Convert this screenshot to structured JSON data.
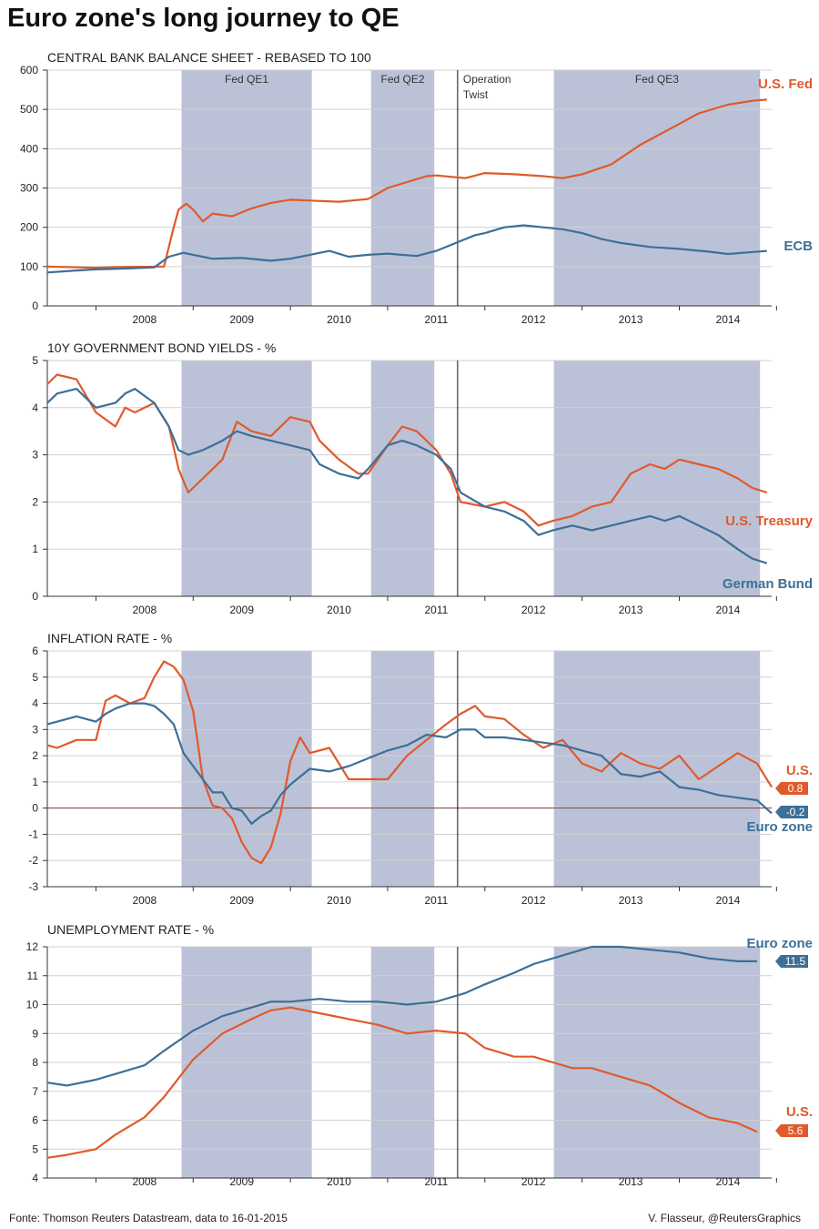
{
  "title": "Euro zone's long journey to QE",
  "footer": {
    "source": "Fonte: Thomson Reuters Datastream, data to 16-01-2015",
    "credit": "V. Flasseur, @ReutersGraphics"
  },
  "colors": {
    "us": "#e05a2b",
    "eu": "#3d6f97",
    "shade": "#b7bfd6",
    "grid": "#d0d0d0",
    "axis": "#333333"
  },
  "year_labels": [
    "2008",
    "2009",
    "2010",
    "2011",
    "2012",
    "2013",
    "2014"
  ],
  "qe_periods": [
    {
      "label": "Fed QE1",
      "start": 2008.88,
      "end": 2010.22
    },
    {
      "label": "Fed QE2",
      "start": 2010.83,
      "end": 2011.48
    },
    {
      "label": "Fed QE3",
      "start": 2012.71,
      "end": 2014.83
    }
  ],
  "operation_twist": {
    "x": 2011.72,
    "label_lines": [
      "Operation",
      "Twist"
    ]
  },
  "chart_data": [
    {
      "type": "line",
      "title": "CENTRAL BANK BALANCE SHEET - REBASED TO 100",
      "xlim": [
        2007.5,
        2014.95
      ],
      "ylim": [
        0,
        600
      ],
      "yticks": [
        "0",
        "100",
        "200",
        "300",
        "400",
        "500",
        "600"
      ],
      "grid": true,
      "show_period_labels": true,
      "series": [
        {
          "name": "U.S. Fed",
          "color": "#e05a2b",
          "x": [
            2007.5,
            2008.0,
            2008.2,
            2008.7,
            2008.8,
            2008.85,
            2008.93,
            2009.0,
            2009.1,
            2009.2,
            2009.4,
            2009.6,
            2009.8,
            2010.0,
            2010.2,
            2010.5,
            2010.8,
            2011.0,
            2011.2,
            2011.4,
            2011.5,
            2011.8,
            2012.0,
            2012.3,
            2012.6,
            2012.8,
            2013.0,
            2013.3,
            2013.6,
            2013.9,
            2014.2,
            2014.5,
            2014.75,
            2014.9
          ],
          "y": [
            100,
            97,
            99,
            100,
            200,
            245,
            260,
            245,
            215,
            235,
            228,
            248,
            262,
            270,
            268,
            265,
            272,
            300,
            315,
            330,
            332,
            325,
            338,
            335,
            330,
            325,
            335,
            360,
            410,
            450,
            490,
            512,
            522,
            525
          ]
        },
        {
          "name": "ECB",
          "color": "#3d6f97",
          "x": [
            2007.5,
            2007.8,
            2008.0,
            2008.3,
            2008.6,
            2008.75,
            2008.9,
            2009.0,
            2009.2,
            2009.5,
            2009.8,
            2010.0,
            2010.2,
            2010.4,
            2010.6,
            2010.8,
            2011.0,
            2011.3,
            2011.5,
            2011.8,
            2011.9,
            2012.0,
            2012.2,
            2012.4,
            2012.6,
            2012.8,
            2013.0,
            2013.2,
            2013.4,
            2013.7,
            2014.0,
            2014.3,
            2014.5,
            2014.7,
            2014.9
          ],
          "y": [
            85,
            90,
            93,
            95,
            98,
            125,
            135,
            130,
            120,
            122,
            115,
            120,
            130,
            140,
            125,
            130,
            133,
            127,
            140,
            170,
            180,
            185,
            200,
            205,
            200,
            195,
            185,
            170,
            160,
            150,
            145,
            138,
            132,
            136,
            140
          ]
        }
      ],
      "end_labels": [
        {
          "text": "U.S. Fed",
          "color": "#e05a2b"
        },
        {
          "text": "ECB",
          "color": "#3d6f97"
        }
      ],
      "badges": []
    },
    {
      "type": "line",
      "title": "10Y GOVERNMENT BOND YIELDS - %",
      "xlim": [
        2007.5,
        2014.95
      ],
      "ylim": [
        0,
        5
      ],
      "yticks": [
        "0",
        "1",
        "2",
        "3",
        "4",
        "5"
      ],
      "grid": true,
      "show_period_labels": false,
      "series": [
        {
          "name": "U.S. Treasury",
          "color": "#e05a2b",
          "x": [
            2007.5,
            2007.6,
            2007.8,
            2008.0,
            2008.2,
            2008.3,
            2008.4,
            2008.6,
            2008.75,
            2008.85,
            2008.95,
            2009.1,
            2009.3,
            2009.45,
            2009.6,
            2009.8,
            2010.0,
            2010.2,
            2010.3,
            2010.5,
            2010.7,
            2010.8,
            2011.0,
            2011.15,
            2011.3,
            2011.5,
            2011.65,
            2011.75,
            2012.0,
            2012.2,
            2012.4,
            2012.55,
            2012.7,
            2012.9,
            2013.1,
            2013.3,
            2013.5,
            2013.7,
            2013.85,
            2014.0,
            2014.2,
            2014.4,
            2014.6,
            2014.75,
            2014.9
          ],
          "y": [
            4.5,
            4.7,
            4.6,
            3.9,
            3.6,
            4.0,
            3.9,
            4.1,
            3.6,
            2.7,
            2.2,
            2.5,
            2.9,
            3.7,
            3.5,
            3.4,
            3.8,
            3.7,
            3.3,
            2.9,
            2.6,
            2.6,
            3.2,
            3.6,
            3.5,
            3.1,
            2.6,
            2.0,
            1.9,
            2.0,
            1.8,
            1.5,
            1.6,
            1.7,
            1.9,
            2.0,
            2.6,
            2.8,
            2.7,
            2.9,
            2.8,
            2.7,
            2.5,
            2.3,
            2.2
          ]
        },
        {
          "name": "German Bund",
          "color": "#3d6f97",
          "x": [
            2007.5,
            2007.6,
            2007.8,
            2008.0,
            2008.2,
            2008.3,
            2008.4,
            2008.6,
            2008.75,
            2008.85,
            2008.95,
            2009.1,
            2009.3,
            2009.45,
            2009.6,
            2009.8,
            2010.0,
            2010.2,
            2010.3,
            2010.5,
            2010.7,
            2010.8,
            2011.0,
            2011.15,
            2011.3,
            2011.5,
            2011.65,
            2011.75,
            2012.0,
            2012.2,
            2012.4,
            2012.55,
            2012.7,
            2012.9,
            2013.1,
            2013.3,
            2013.5,
            2013.7,
            2013.85,
            2014.0,
            2014.2,
            2014.4,
            2014.6,
            2014.75,
            2014.9
          ],
          "y": [
            4.1,
            4.3,
            4.4,
            4.0,
            4.1,
            4.3,
            4.4,
            4.1,
            3.6,
            3.1,
            3.0,
            3.1,
            3.3,
            3.5,
            3.4,
            3.3,
            3.2,
            3.1,
            2.8,
            2.6,
            2.5,
            2.7,
            3.2,
            3.3,
            3.2,
            3.0,
            2.7,
            2.2,
            1.9,
            1.8,
            1.6,
            1.3,
            1.4,
            1.5,
            1.4,
            1.5,
            1.6,
            1.7,
            1.6,
            1.7,
            1.5,
            1.3,
            1.0,
            0.8,
            0.7
          ]
        }
      ],
      "end_labels": [
        {
          "text": "U.S. Treasury",
          "color": "#e05a2b"
        },
        {
          "text": "German Bund",
          "color": "#3d6f97"
        }
      ],
      "badges": []
    },
    {
      "type": "line",
      "title": "INFLATION RATE - %",
      "xlim": [
        2007.5,
        2014.95
      ],
      "ylim": [
        -3,
        6
      ],
      "yticks": [
        "-3",
        "-2",
        "-1",
        "0",
        "1",
        "2",
        "3",
        "4",
        "5",
        "6"
      ],
      "grid": true,
      "show_period_labels": false,
      "zero_line": true,
      "series": [
        {
          "name": "U.S.",
          "color": "#e05a2b",
          "x": [
            2007.5,
            2007.6,
            2007.8,
            2008.0,
            2008.1,
            2008.2,
            2008.35,
            2008.5,
            2008.6,
            2008.7,
            2008.8,
            2008.9,
            2009.0,
            2009.1,
            2009.2,
            2009.3,
            2009.4,
            2009.5,
            2009.6,
            2009.7,
            2009.8,
            2009.9,
            2010.0,
            2010.1,
            2010.2,
            2010.4,
            2010.6,
            2010.8,
            2011.0,
            2011.2,
            2011.4,
            2011.6,
            2011.75,
            2011.9,
            2012.0,
            2012.2,
            2012.4,
            2012.6,
            2012.8,
            2013.0,
            2013.2,
            2013.4,
            2013.6,
            2013.8,
            2014.0,
            2014.2,
            2014.4,
            2014.6,
            2014.8,
            2014.95
          ],
          "y": [
            2.4,
            2.3,
            2.6,
            2.6,
            4.1,
            4.3,
            4.0,
            4.2,
            5.0,
            5.6,
            5.4,
            4.9,
            3.7,
            1.1,
            0.1,
            0.0,
            -0.4,
            -1.3,
            -1.9,
            -2.1,
            -1.5,
            -0.2,
            1.8,
            2.7,
            2.1,
            2.3,
            1.1,
            1.1,
            1.1,
            2.0,
            2.6,
            3.2,
            3.6,
            3.9,
            3.5,
            3.4,
            2.8,
            2.3,
            2.6,
            1.7,
            1.4,
            2.1,
            1.7,
            1.5,
            2.0,
            1.1,
            1.6,
            2.1,
            1.7,
            0.8
          ]
        },
        {
          "name": "Euro zone",
          "color": "#3d6f97",
          "x": [
            2007.5,
            2007.6,
            2007.8,
            2008.0,
            2008.1,
            2008.2,
            2008.35,
            2008.5,
            2008.6,
            2008.7,
            2008.8,
            2008.9,
            2009.0,
            2009.1,
            2009.2,
            2009.3,
            2009.4,
            2009.5,
            2009.6,
            2009.7,
            2009.8,
            2009.9,
            2010.0,
            2010.1,
            2010.2,
            2010.4,
            2010.6,
            2010.8,
            2011.0,
            2011.2,
            2011.4,
            2011.6,
            2011.75,
            2011.9,
            2012.0,
            2012.2,
            2012.4,
            2012.6,
            2012.8,
            2013.0,
            2013.2,
            2013.4,
            2013.6,
            2013.8,
            2014.0,
            2014.2,
            2014.4,
            2014.6,
            2014.8,
            2014.95
          ],
          "y": [
            3.2,
            3.3,
            3.5,
            3.3,
            3.6,
            3.8,
            4.0,
            4.0,
            3.9,
            3.6,
            3.2,
            2.1,
            1.6,
            1.1,
            0.6,
            0.6,
            0.0,
            -0.1,
            -0.6,
            -0.3,
            -0.1,
            0.5,
            0.9,
            1.2,
            1.5,
            1.4,
            1.6,
            1.9,
            2.2,
            2.4,
            2.8,
            2.7,
            3.0,
            3.0,
            2.7,
            2.7,
            2.6,
            2.5,
            2.4,
            2.2,
            2.0,
            1.3,
            1.2,
            1.4,
            0.8,
            0.7,
            0.5,
            0.4,
            0.3,
            -0.2
          ]
        }
      ],
      "end_labels": [
        {
          "text": "U.S.",
          "color": "#e05a2b"
        },
        {
          "text": "Euro zone",
          "color": "#3d6f97"
        }
      ],
      "badges": [
        {
          "text": "0.8",
          "color": "#e05a2b"
        },
        {
          "text": "-0.2",
          "color": "#3d6f97"
        }
      ]
    },
    {
      "type": "line",
      "title": "UNEMPLOYMENT RATE - %",
      "xlim": [
        2007.5,
        2014.95
      ],
      "ylim": [
        4,
        12
      ],
      "yticks": [
        "4",
        "5",
        "6",
        "7",
        "8",
        "9",
        "10",
        "11",
        "12"
      ],
      "grid": true,
      "show_period_labels": false,
      "series": [
        {
          "name": "Euro zone",
          "color": "#3d6f97",
          "x": [
            2007.5,
            2007.7,
            2008.0,
            2008.2,
            2008.5,
            2008.7,
            2009.0,
            2009.3,
            2009.6,
            2009.8,
            2010.0,
            2010.3,
            2010.6,
            2010.9,
            2011.2,
            2011.5,
            2011.8,
            2012.0,
            2012.3,
            2012.5,
            2012.7,
            2012.9,
            2013.1,
            2013.4,
            2013.7,
            2014.0,
            2014.3,
            2014.6,
            2014.8
          ],
          "y": [
            7.3,
            7.2,
            7.4,
            7.6,
            7.9,
            8.4,
            9.1,
            9.6,
            9.9,
            10.1,
            10.1,
            10.2,
            10.1,
            10.1,
            10.0,
            10.1,
            10.4,
            10.7,
            11.1,
            11.4,
            11.6,
            11.8,
            12.0,
            12.0,
            11.9,
            11.8,
            11.6,
            11.5,
            11.5
          ]
        },
        {
          "name": "U.S.",
          "color": "#e05a2b",
          "x": [
            2007.5,
            2007.7,
            2008.0,
            2008.2,
            2008.5,
            2008.7,
            2009.0,
            2009.3,
            2009.6,
            2009.8,
            2010.0,
            2010.3,
            2010.6,
            2010.9,
            2011.2,
            2011.5,
            2011.8,
            2012.0,
            2012.3,
            2012.5,
            2012.7,
            2012.9,
            2013.1,
            2013.4,
            2013.7,
            2014.0,
            2014.3,
            2014.6,
            2014.8
          ],
          "y": [
            4.7,
            4.8,
            5.0,
            5.5,
            6.1,
            6.8,
            8.1,
            9.0,
            9.5,
            9.8,
            9.9,
            9.7,
            9.5,
            9.3,
            9.0,
            9.1,
            9.0,
            8.5,
            8.2,
            8.2,
            8.0,
            7.8,
            7.8,
            7.5,
            7.2,
            6.6,
            6.1,
            5.9,
            5.6
          ]
        }
      ],
      "end_labels": [
        {
          "text": "Euro zone",
          "color": "#3d6f97"
        },
        {
          "text": "U.S.",
          "color": "#e05a2b"
        }
      ],
      "badges": [
        {
          "text": "11.5",
          "color": "#3d6f97"
        },
        {
          "text": "5.6",
          "color": "#e05a2b"
        }
      ]
    }
  ]
}
